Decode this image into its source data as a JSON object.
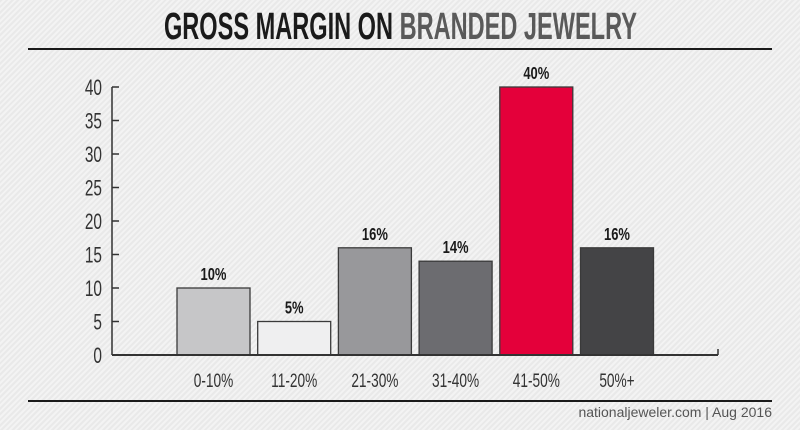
{
  "chart_data": {
    "type": "bar",
    "title_part1": "GROSS MARGIN ON",
    "title_part2": "BRANDED JEWELRY",
    "categories": [
      "0-10%",
      "11-20%",
      "21-30%",
      "31-40%",
      "41-50%",
      "50%+"
    ],
    "values": [
      10,
      5,
      16,
      14,
      40,
      16
    ],
    "data_labels": [
      "10%",
      "5%",
      "16%",
      "14%",
      "40%",
      "16%"
    ],
    "colors": [
      "#c6c6c8",
      "#efeff0",
      "#98989b",
      "#6c6c70",
      "#e4003a",
      "#444446"
    ],
    "yticks": [
      0,
      5,
      10,
      15,
      20,
      25,
      30,
      35,
      40
    ],
    "ylim": [
      0,
      40
    ],
    "xlabel": "",
    "ylabel": "",
    "grid": false,
    "legend": "none"
  },
  "footer": "nationaljeweler.com | Aug 2016"
}
